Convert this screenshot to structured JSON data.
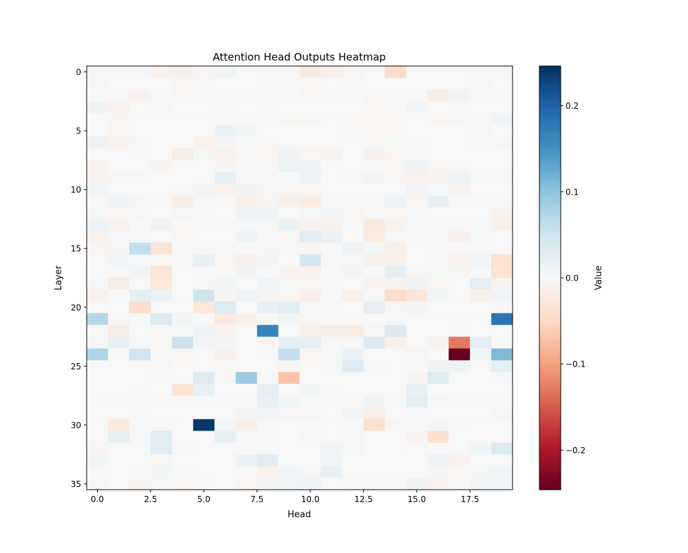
{
  "chart_data": {
    "type": "heatmap",
    "title": "Attention Head Outputs Heatmap",
    "xlabel": "Head",
    "ylabel": "Layer",
    "colorbar_label": "Value",
    "colormap": "RdBu",
    "vmin": -0.246,
    "vmax": 0.246,
    "xlim": [
      -0.5,
      19.5
    ],
    "ylim": [
      35.5,
      -0.5
    ],
    "x_ticks": [
      0,
      2.5,
      5,
      7.5,
      10,
      12.5,
      15,
      17.5
    ],
    "x_tick_labels": [
      "0.0",
      "2.5",
      "5.0",
      "7.5",
      "10.0",
      "12.5",
      "15.0",
      "17.5"
    ],
    "y_ticks": [
      0,
      5,
      10,
      15,
      20,
      25,
      30,
      35
    ],
    "y_tick_labels": [
      "0",
      "5",
      "10",
      "15",
      "20",
      "25",
      "30",
      "35"
    ],
    "colorbar_ticks": [
      0.2,
      0.1,
      0.0,
      -0.1,
      -0.2
    ],
    "colorbar_tick_labels": [
      "0.2",
      "0.1",
      "0.0",
      "−0.1",
      "−0.2"
    ],
    "values": [
      [
        0.005,
        0.005,
        0.005,
        -0.01,
        -0.012,
        -0.003,
        0.01,
        0,
        0,
        0,
        -0.025,
        -0.012,
        -0.006,
        0,
        -0.045,
        0,
        0,
        0,
        0,
        -0.003
      ],
      [
        -0.005,
        0,
        0,
        0,
        -0.003,
        -0.003,
        0,
        0,
        -0.004,
        -0.004,
        -0.003,
        0,
        0.003,
        0,
        0,
        0,
        0,
        0,
        -0.003,
        0
      ],
      [
        0,
        0,
        -0.01,
        0,
        -0.006,
        0,
        0.003,
        0,
        0.004,
        0,
        -0.006,
        0.004,
        0,
        -0.005,
        0,
        0,
        -0.02,
        0.008,
        0,
        0
      ],
      [
        0.01,
        -0.01,
        0,
        -0.004,
        0,
        0,
        -0.002,
        0,
        -0.003,
        0,
        0,
        0,
        0,
        -0.002,
        -0.002,
        0.008,
        0,
        -0.002,
        0,
        0
      ],
      [
        0,
        -0.003,
        0,
        0,
        0,
        0,
        0,
        0,
        0.003,
        -0.006,
        0.004,
        0,
        -0.005,
        -0.003,
        -0.006,
        0,
        -0.006,
        -0.003,
        0.003,
        0.008
      ],
      [
        0,
        -0.006,
        0,
        0,
        0,
        0,
        0.015,
        0.006,
        0,
        0,
        0,
        0,
        -0.002,
        -0.005,
        -0.006,
        0,
        0,
        0,
        -0.003,
        0
      ],
      [
        0.014,
        -0.01,
        0.004,
        0,
        0,
        -0.01,
        0.004,
        0,
        -0.006,
        0,
        0,
        0,
        0,
        0,
        0.004,
        -0.002,
        0,
        0,
        0.003,
        -0.003
      ],
      [
        0,
        0,
        0.003,
        0,
        -0.02,
        0.004,
        -0.008,
        0.003,
        -0.006,
        0.01,
        -0.005,
        -0.008,
        0,
        -0.012,
        -0.006,
        0.003,
        0,
        0,
        0,
        0
      ],
      [
        -0.007,
        0,
        0,
        -0.007,
        0,
        0,
        -0.007,
        0.002,
        -0.002,
        0.013,
        0.012,
        0,
        0,
        0,
        -0.004,
        0.01,
        -0.006,
        -0.002,
        0,
        0
      ],
      [
        -0.007,
        -0.006,
        0.004,
        0,
        0,
        0,
        0.02,
        0,
        0.003,
        0,
        0.01,
        0,
        0.003,
        0.007,
        -0.006,
        -0.01,
        -0.007,
        0.012,
        0.003,
        0.003
      ],
      [
        0.008,
        0,
        0,
        0,
        0.003,
        0.008,
        -0.008,
        0.01,
        -0.004,
        -0.006,
        -0.006,
        0,
        0,
        0,
        0,
        0.007,
        0.003,
        -0.007,
        0,
        0
      ],
      [
        0,
        0.01,
        -0.004,
        0,
        -0.018,
        0.003,
        0,
        -0.014,
        -0.004,
        -0.014,
        -0.02,
        0,
        0,
        0,
        0.012,
        -0.006,
        0.018,
        0,
        0,
        0
      ],
      [
        0.004,
        -0.005,
        0.004,
        0,
        -0.003,
        0.003,
        0,
        0.01,
        0.01,
        0,
        0.004,
        0.008,
        -0.006,
        0,
        -0.006,
        0.003,
        0,
        0,
        0,
        -0.008
      ],
      [
        0.014,
        -0.01,
        0,
        0.01,
        0,
        0.003,
        0.003,
        0.003,
        -0.003,
        0.015,
        -0.008,
        -0.008,
        0.003,
        -0.025,
        -0.008,
        0.002,
        0.002,
        0.002,
        0.003,
        -0.012
      ],
      [
        -0.008,
        0.003,
        0.004,
        0,
        -0.006,
        0,
        0,
        0.01,
        0.003,
        -0.006,
        0.03,
        0.016,
        0,
        -0.02,
        0.003,
        0.003,
        -0.003,
        -0.012,
        0.003,
        0
      ],
      [
        -0.005,
        -0.003,
        0.06,
        -0.035,
        0.002,
        0.003,
        -0.003,
        0,
        -0.003,
        -0.004,
        -0.006,
        0,
        0.01,
        0.004,
        -0.014,
        0,
        -0.002,
        0,
        0,
        0
      ],
      [
        0,
        0.008,
        0.003,
        -0.006,
        -0.004,
        0.02,
        -0.003,
        -0.014,
        0.006,
        0,
        0.045,
        0.003,
        -0.004,
        -0.012,
        -0.012,
        0,
        0.003,
        -0.01,
        0.006,
        -0.04
      ],
      [
        0,
        0,
        0.008,
        -0.035,
        0,
        0,
        0,
        0.008,
        0,
        -0.008,
        -0.01,
        0,
        0.007,
        0,
        0.025,
        0.004,
        0.004,
        -0.004,
        0,
        -0.035
      ],
      [
        0.003,
        -0.02,
        0,
        -0.03,
        0,
        -0.003,
        0.006,
        0,
        0.008,
        0.004,
        -0.006,
        0.003,
        0,
        -0.008,
        -0.008,
        0.01,
        -0.006,
        0,
        0.025,
        -0.008
      ],
      [
        -0.01,
        0,
        0.025,
        0.015,
        0,
        0.05,
        -0.004,
        0.012,
        -0.005,
        -0.005,
        -0.015,
        0,
        -0.012,
        0.003,
        -0.045,
        -0.03,
        0.006,
        0,
        -0.012,
        0.008
      ],
      [
        0,
        0,
        -0.045,
        0,
        0,
        -0.03,
        0.035,
        0,
        0.02,
        0.03,
        0.003,
        -0.003,
        0,
        0.025,
        -0.006,
        0.008,
        0,
        0,
        0,
        0
      ],
      [
        0.07,
        -0.005,
        0.003,
        0.035,
        0.006,
        0,
        -0.025,
        -0.012,
        0,
        0.006,
        -0.003,
        0,
        0,
        0,
        0.003,
        0,
        0,
        0,
        0,
        0.18
      ],
      [
        0,
        -0.02,
        0,
        -0.003,
        0.003,
        0.012,
        -0.008,
        0,
        0.165,
        0,
        -0.014,
        -0.02,
        -0.02,
        0.004,
        0.035,
        0,
        0,
        0.003,
        0,
        0
      ],
      [
        0.004,
        0.02,
        0.004,
        -0.004,
        0.055,
        0.006,
        0.006,
        0,
        -0.005,
        0.025,
        0.025,
        0.003,
        0.003,
        0.035,
        -0.012,
        0,
        -0.01,
        -0.13,
        0.025,
        0
      ],
      [
        0.075,
        0.003,
        0.05,
        -0.003,
        -0.005,
        0,
        -0.012,
        0,
        0.003,
        0.06,
        -0.006,
        0.003,
        0.015,
        0,
        0,
        -0.004,
        0,
        -0.245,
        0.006,
        0.11
      ],
      [
        0,
        0,
        0,
        0.005,
        0,
        0,
        0,
        0,
        0,
        -0.003,
        0,
        0.003,
        0.035,
        0.003,
        0,
        0,
        0.01,
        0.01,
        0,
        0.025
      ],
      [
        0,
        0,
        0,
        0.003,
        0,
        0.035,
        -0.002,
        0.09,
        0,
        -0.07,
        0,
        0,
        0,
        0,
        0,
        -0.003,
        0.035,
        0,
        0,
        0.003
      ],
      [
        0,
        0,
        0.002,
        0,
        -0.035,
        0.02,
        0,
        0,
        0.025,
        0,
        0.006,
        -0.002,
        0,
        0,
        0,
        0.02,
        0,
        0,
        0,
        0
      ],
      [
        0,
        0,
        0.002,
        0,
        0,
        0,
        0,
        0,
        0.02,
        0.006,
        0,
        0,
        0,
        0.008,
        0,
        0.025,
        0.004,
        0,
        0.002,
        0
      ],
      [
        0,
        0,
        0.002,
        0,
        0,
        0,
        0,
        0.008,
        0.008,
        -0.003,
        -0.004,
        0,
        0.008,
        -0.015,
        0,
        0.003,
        0,
        0,
        0,
        -0.006
      ],
      [
        0,
        -0.025,
        0.003,
        0.003,
        0,
        0.24,
        0.006,
        -0.015,
        0,
        0,
        0,
        0,
        0,
        -0.04,
        -0.006,
        0,
        0.006,
        0.003,
        0,
        0
      ],
      [
        0,
        0.025,
        0.003,
        0.03,
        0,
        0,
        0.018,
        0.002,
        0.002,
        0,
        0.004,
        0,
        -0.003,
        0,
        0,
        -0.007,
        -0.04,
        0,
        0,
        0
      ],
      [
        -0.005,
        0,
        0,
        0.03,
        -0.003,
        0,
        0,
        0,
        0,
        0,
        0,
        0.008,
        0.004,
        0,
        0,
        0,
        0,
        0,
        0.008,
        0.035
      ],
      [
        0.006,
        0,
        0,
        -0.003,
        0,
        0,
        0,
        0.015,
        0.028,
        0,
        0,
        0.008,
        0,
        0,
        0,
        0,
        0.012,
        -0.01,
        0,
        0
      ],
      [
        0,
        0,
        0.003,
        0.006,
        0.003,
        0,
        0,
        0,
        -0.01,
        0.008,
        -0.004,
        0.02,
        0,
        0,
        0,
        0,
        0.004,
        -0.002,
        0.004,
        0.008
      ],
      [
        -0.003,
        0,
        -0.007,
        0.004,
        -0.005,
        0.002,
        0,
        -0.005,
        0.006,
        0.008,
        0.012,
        0,
        -0.004,
        0.003,
        -0.002,
        0.012,
        -0.008,
        -0.002,
        0.008,
        0.008
      ]
    ]
  }
}
